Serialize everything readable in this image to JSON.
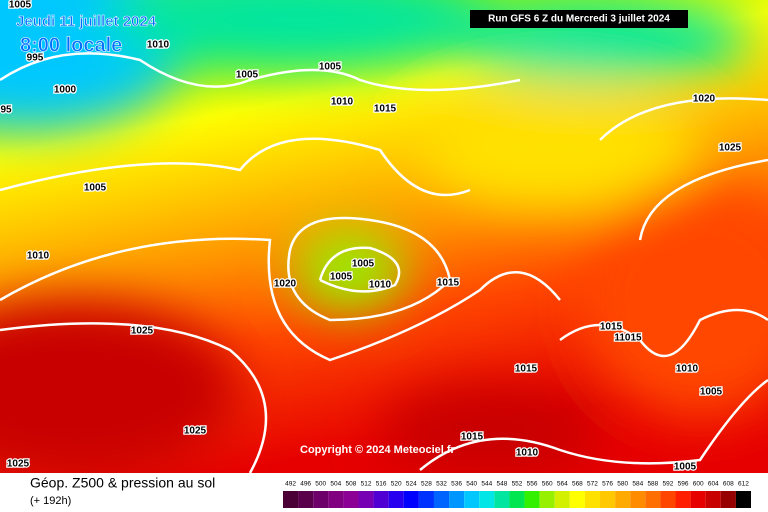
{
  "header": {
    "valid_date": "Jeudi 11 juillet 2024",
    "local_time": "8:00 locale",
    "run": "Run GFS 6 Z du Mercredi 3 juillet 2024"
  },
  "copyright": "Copyright © 2024 Meteociel.fr",
  "footer": {
    "title": "Géop. Z500 & pression au sol",
    "lead": "(+ 192h)"
  },
  "isobar_labels": [
    "1005",
    "995",
    "1010",
    "1000",
    "95",
    "1005",
    "1005",
    "1010",
    "1015",
    "1020",
    "1025",
    "1005",
    "1010",
    "1020",
    "1005",
    "1005",
    "1010",
    "1015",
    "1025",
    "1015",
    "11015",
    "1015",
    "1010",
    "1005",
    "1025",
    "1015",
    "1010",
    "1025",
    "1005"
  ],
  "scale": {
    "values": [
      492,
      496,
      500,
      504,
      508,
      512,
      516,
      520,
      524,
      528,
      532,
      536,
      540,
      544,
      548,
      552,
      556,
      560,
      564,
      568,
      572,
      576,
      580,
      584,
      588,
      592,
      596,
      600,
      604,
      608,
      612
    ],
    "colors": [
      "#4b0036",
      "#5a004a",
      "#6e0069",
      "#80007f",
      "#8c0096",
      "#7800b4",
      "#5000d2",
      "#2800f0",
      "#0000ff",
      "#0032ff",
      "#0064ff",
      "#0096ff",
      "#00c8ff",
      "#00e6e6",
      "#00e6a0",
      "#00e650",
      "#32f000",
      "#96f000",
      "#d2f000",
      "#ffff00",
      "#ffe100",
      "#ffc800",
      "#ffaa00",
      "#ff8c00",
      "#ff6e00",
      "#ff4600",
      "#ff1e00",
      "#e60000",
      "#c80000",
      "#960000",
      "#000000"
    ]
  }
}
